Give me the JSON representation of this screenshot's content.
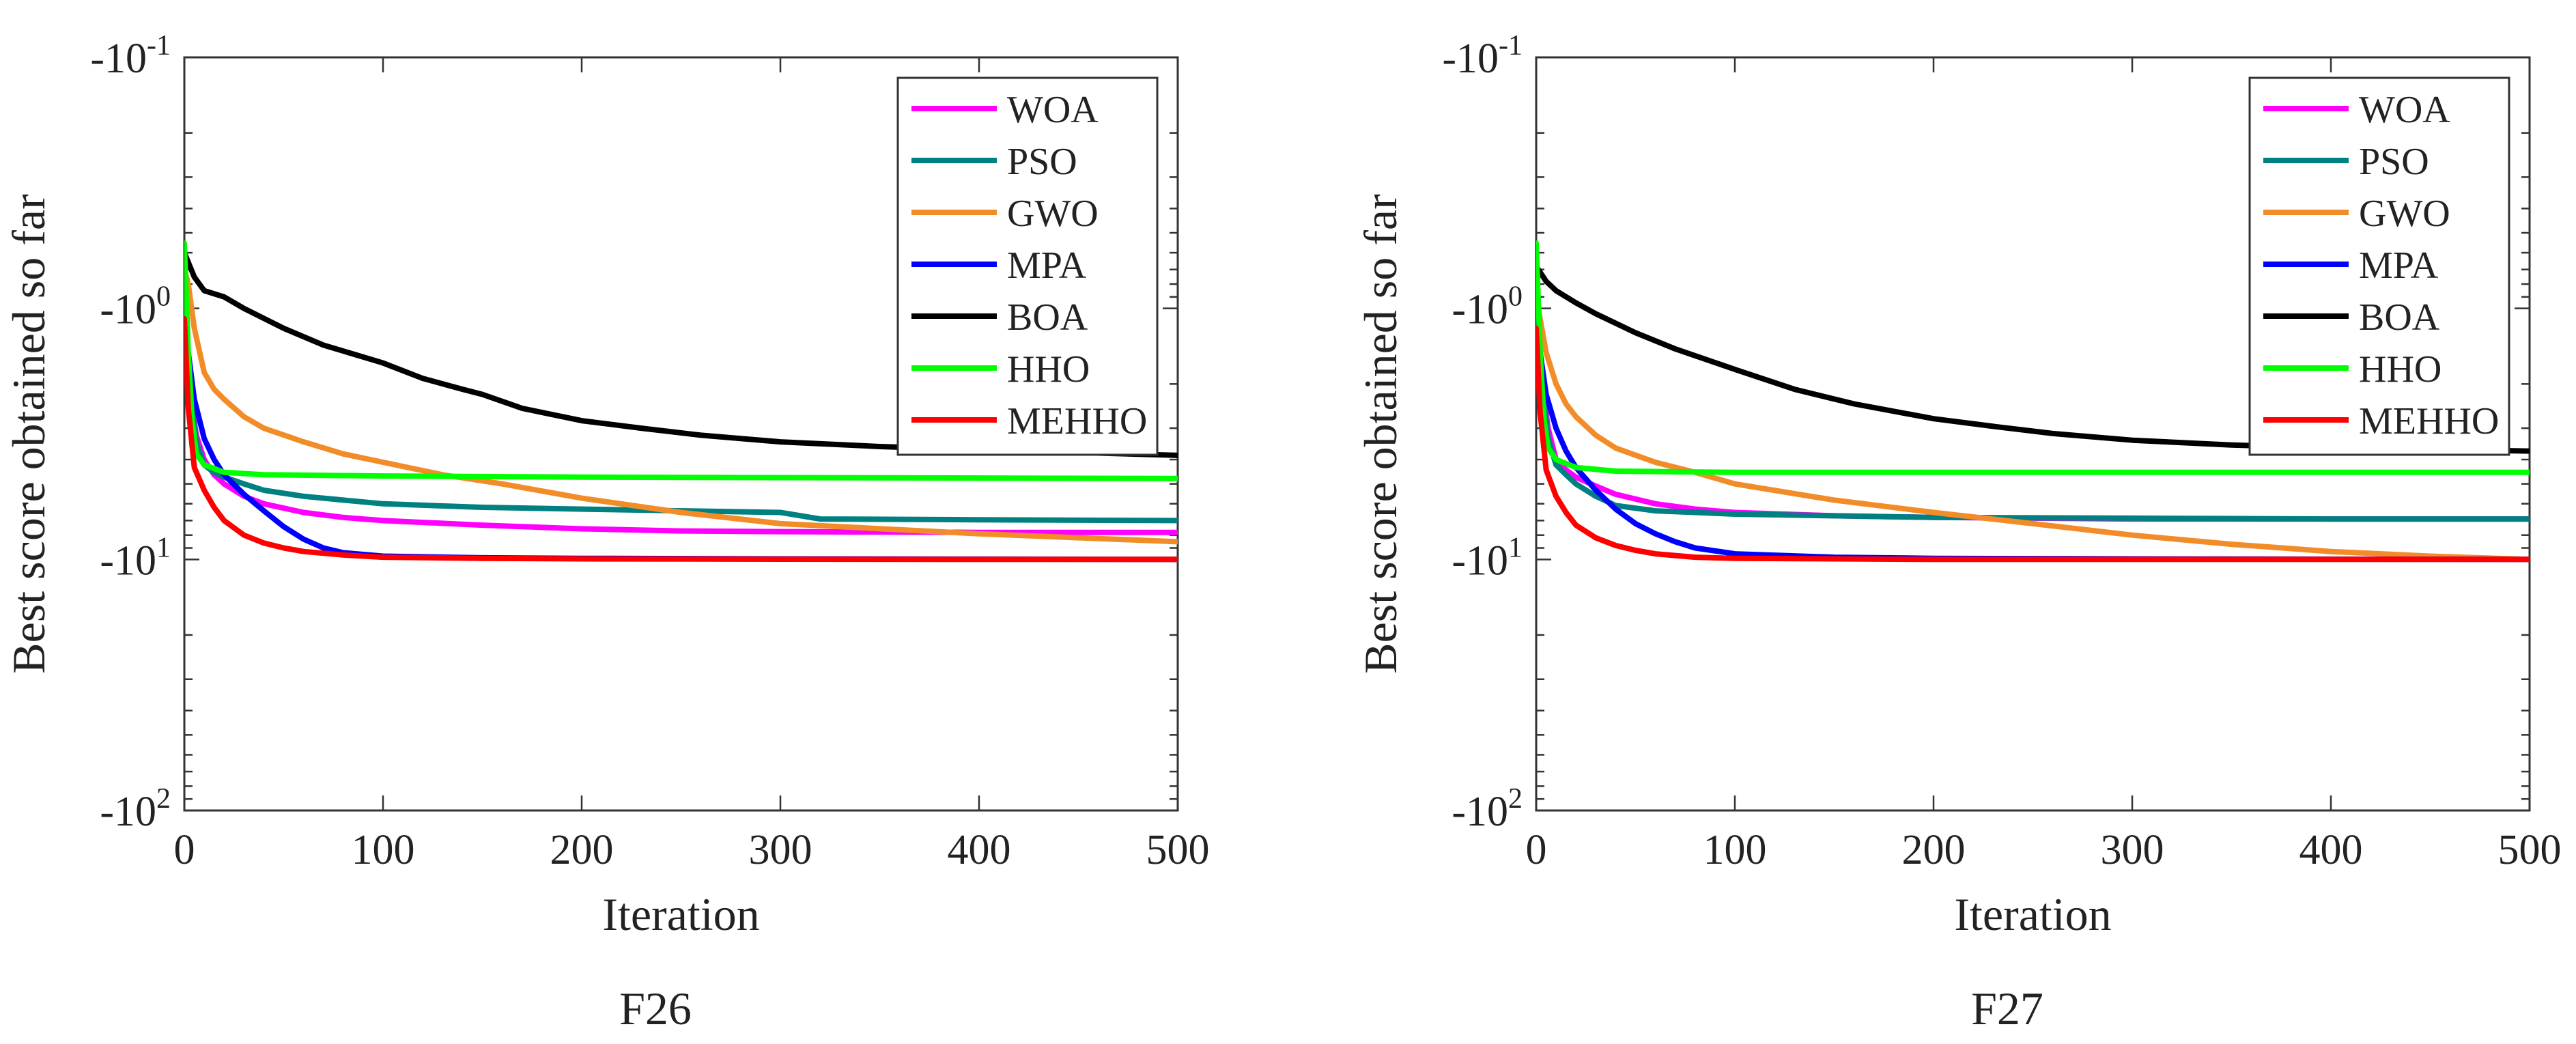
{
  "chart_data": [
    {
      "type": "line",
      "caption": "F26",
      "xlabel": "Iteration",
      "ylabel": "Best score obtained so far",
      "xlim": [
        0,
        500
      ],
      "xticks": [
        "0",
        "100",
        "200",
        "300",
        "400",
        "500"
      ],
      "yscale": "log-negative",
      "ylim": [
        -0.1,
        -100
      ],
      "yticks": [
        {
          "base": "-10",
          "exp": "-1"
        },
        {
          "base": "-10",
          "exp": "0"
        },
        {
          "base": "-10",
          "exp": "1"
        },
        {
          "base": "-10",
          "exp": "2"
        }
      ],
      "legend_position": "top-right",
      "series": [
        {
          "name": "WOA",
          "color": "#ff00ff",
          "x": [
            0,
            3,
            6,
            10,
            15,
            20,
            30,
            40,
            60,
            80,
            100,
            150,
            200,
            250,
            300,
            400,
            500
          ],
          "y": [
            -1.2,
            -2.2,
            -3.2,
            -4.0,
            -4.6,
            -5.0,
            -5.6,
            -6.0,
            -6.5,
            -6.8,
            -7.0,
            -7.3,
            -7.55,
            -7.7,
            -7.75,
            -7.8,
            -7.8
          ]
        },
        {
          "name": "PSO",
          "color": "#008080",
          "x": [
            0,
            3,
            6,
            10,
            15,
            20,
            30,
            40,
            60,
            80,
            100,
            150,
            200,
            250,
            300,
            320,
            400,
            500
          ],
          "y": [
            -0.8,
            -2.2,
            -3.4,
            -4.2,
            -4.5,
            -4.7,
            -5.0,
            -5.3,
            -5.6,
            -5.8,
            -6.0,
            -6.2,
            -6.3,
            -6.4,
            -6.5,
            -6.9,
            -6.95,
            -7.0
          ]
        },
        {
          "name": "GWO",
          "color": "#f28c28",
          "x": [
            0,
            2,
            5,
            10,
            15,
            20,
            30,
            40,
            60,
            80,
            100,
            130,
            160,
            200,
            250,
            300,
            400,
            500
          ],
          "y": [
            -0.7,
            -0.8,
            -1.2,
            -1.8,
            -2.1,
            -2.3,
            -2.7,
            -3.0,
            -3.4,
            -3.8,
            -4.1,
            -4.6,
            -5.0,
            -5.7,
            -6.5,
            -7.2,
            -7.9,
            -8.5
          ]
        },
        {
          "name": "MPA",
          "color": "#0000ff",
          "x": [
            0,
            2,
            5,
            10,
            15,
            20,
            30,
            40,
            50,
            60,
            70,
            80,
            100,
            150,
            200,
            300,
            400,
            500
          ],
          "y": [
            -0.9,
            -1.5,
            -2.3,
            -3.3,
            -4.0,
            -4.6,
            -5.5,
            -6.4,
            -7.4,
            -8.3,
            -9.0,
            -9.4,
            -9.7,
            -9.85,
            -9.9,
            -9.95,
            -9.97,
            -10.0
          ]
        },
        {
          "name": "BOA",
          "color": "#000000",
          "x": [
            0,
            5,
            10,
            20,
            30,
            50,
            70,
            100,
            120,
            140,
            150,
            170,
            200,
            230,
            260,
            300,
            350,
            400,
            450,
            500
          ],
          "y": [
            -0.6,
            -0.75,
            -0.85,
            -0.9,
            -1.0,
            -1.2,
            -1.4,
            -1.65,
            -1.9,
            -2.1,
            -2.2,
            -2.5,
            -2.8,
            -3.0,
            -3.2,
            -3.4,
            -3.55,
            -3.65,
            -3.75,
            -3.85
          ]
        },
        {
          "name": "HHO",
          "color": "#00ff00",
          "x": [
            0,
            2,
            4,
            6,
            10,
            20,
            40,
            100,
            200,
            300,
            400,
            500
          ],
          "y": [
            -0.55,
            -1.5,
            -2.8,
            -3.8,
            -4.2,
            -4.5,
            -4.6,
            -4.65,
            -4.7,
            -4.72,
            -4.74,
            -4.76
          ]
        },
        {
          "name": "MEHHO",
          "color": "#ff0000",
          "x": [
            0,
            2,
            5,
            10,
            15,
            20,
            30,
            40,
            50,
            60,
            80,
            100,
            150,
            200,
            300,
            400,
            500
          ],
          "y": [
            -1.1,
            -2.5,
            -4.3,
            -5.3,
            -6.2,
            -7.0,
            -8.0,
            -8.6,
            -9.0,
            -9.3,
            -9.6,
            -9.8,
            -9.9,
            -9.95,
            -9.98,
            -10.0,
            -10.0
          ]
        }
      ]
    },
    {
      "type": "line",
      "caption": "F27",
      "xlabel": "Iteration",
      "ylabel": "Best score obtained so far",
      "xlim": [
        0,
        500
      ],
      "xticks": [
        "0",
        "100",
        "200",
        "300",
        "400",
        "500"
      ],
      "yscale": "log-negative",
      "ylim": [
        -0.1,
        -100
      ],
      "yticks": [
        {
          "base": "-10",
          "exp": "-1"
        },
        {
          "base": "-10",
          "exp": "0"
        },
        {
          "base": "-10",
          "exp": "1"
        },
        {
          "base": "-10",
          "exp": "2"
        }
      ],
      "legend_position": "top-right",
      "series": [
        {
          "name": "WOA",
          "color": "#ff00ff",
          "x": [
            0,
            3,
            6,
            10,
            15,
            20,
            30,
            40,
            60,
            80,
            100,
            150,
            200,
            250,
            300,
            400,
            500
          ],
          "y": [
            -1.0,
            -2.0,
            -3.0,
            -4.0,
            -4.4,
            -4.7,
            -5.1,
            -5.5,
            -6.0,
            -6.3,
            -6.5,
            -6.7,
            -6.8,
            -6.85,
            -6.9,
            -6.9,
            -6.9
          ]
        },
        {
          "name": "PSO",
          "color": "#008080",
          "x": [
            0,
            3,
            6,
            10,
            15,
            20,
            30,
            40,
            60,
            80,
            100,
            150,
            200,
            300,
            400,
            500
          ],
          "y": [
            -0.8,
            -2.0,
            -3.3,
            -4.2,
            -4.6,
            -5.0,
            -5.6,
            -6.1,
            -6.4,
            -6.5,
            -6.6,
            -6.7,
            -6.8,
            -6.85,
            -6.9,
            -6.9
          ]
        },
        {
          "name": "GWO",
          "color": "#f28c28",
          "x": [
            0,
            2,
            5,
            10,
            15,
            20,
            30,
            40,
            60,
            80,
            100,
            150,
            200,
            250,
            300,
            350,
            400,
            450,
            500
          ],
          "y": [
            -0.9,
            -1.1,
            -1.5,
            -2.0,
            -2.4,
            -2.7,
            -3.2,
            -3.6,
            -4.1,
            -4.5,
            -5.0,
            -5.8,
            -6.5,
            -7.2,
            -8.0,
            -8.7,
            -9.3,
            -9.7,
            -10.0
          ]
        },
        {
          "name": "MPA",
          "color": "#0000ff",
          "x": [
            0,
            2,
            5,
            10,
            15,
            20,
            30,
            40,
            50,
            60,
            70,
            80,
            100,
            150,
            200,
            300,
            400,
            500
          ],
          "y": [
            -0.9,
            -1.5,
            -2.2,
            -3.0,
            -3.7,
            -4.3,
            -5.3,
            -6.3,
            -7.2,
            -7.9,
            -8.5,
            -9.0,
            -9.5,
            -9.8,
            -9.9,
            -9.95,
            -9.98,
            -10.0
          ]
        },
        {
          "name": "BOA",
          "color": "#000000",
          "x": [
            0,
            5,
            10,
            20,
            30,
            50,
            70,
            100,
            130,
            160,
            200,
            230,
            260,
            300,
            350,
            400,
            450,
            500
          ],
          "y": [
            -0.68,
            -0.78,
            -0.85,
            -0.95,
            -1.05,
            -1.25,
            -1.45,
            -1.75,
            -2.1,
            -2.4,
            -2.75,
            -2.95,
            -3.15,
            -3.35,
            -3.5,
            -3.6,
            -3.65,
            -3.7
          ]
        },
        {
          "name": "HHO",
          "color": "#00ff00",
          "x": [
            0,
            2,
            4,
            6,
            10,
            20,
            40,
            100,
            200,
            300,
            400,
            500
          ],
          "y": [
            -0.55,
            -1.5,
            -2.8,
            -3.6,
            -4.0,
            -4.3,
            -4.45,
            -4.5,
            -4.5,
            -4.5,
            -4.5,
            -4.5
          ]
        },
        {
          "name": "MEHHO",
          "color": "#ff0000",
          "x": [
            0,
            2,
            5,
            10,
            15,
            20,
            30,
            40,
            50,
            60,
            80,
            100,
            150,
            200,
            300,
            400,
            500
          ],
          "y": [
            -1.2,
            -2.6,
            -4.4,
            -5.6,
            -6.5,
            -7.3,
            -8.2,
            -8.8,
            -9.2,
            -9.5,
            -9.8,
            -9.9,
            -9.95,
            -10.0,
            -10.0,
            -10.0,
            -10.0
          ]
        }
      ]
    }
  ]
}
